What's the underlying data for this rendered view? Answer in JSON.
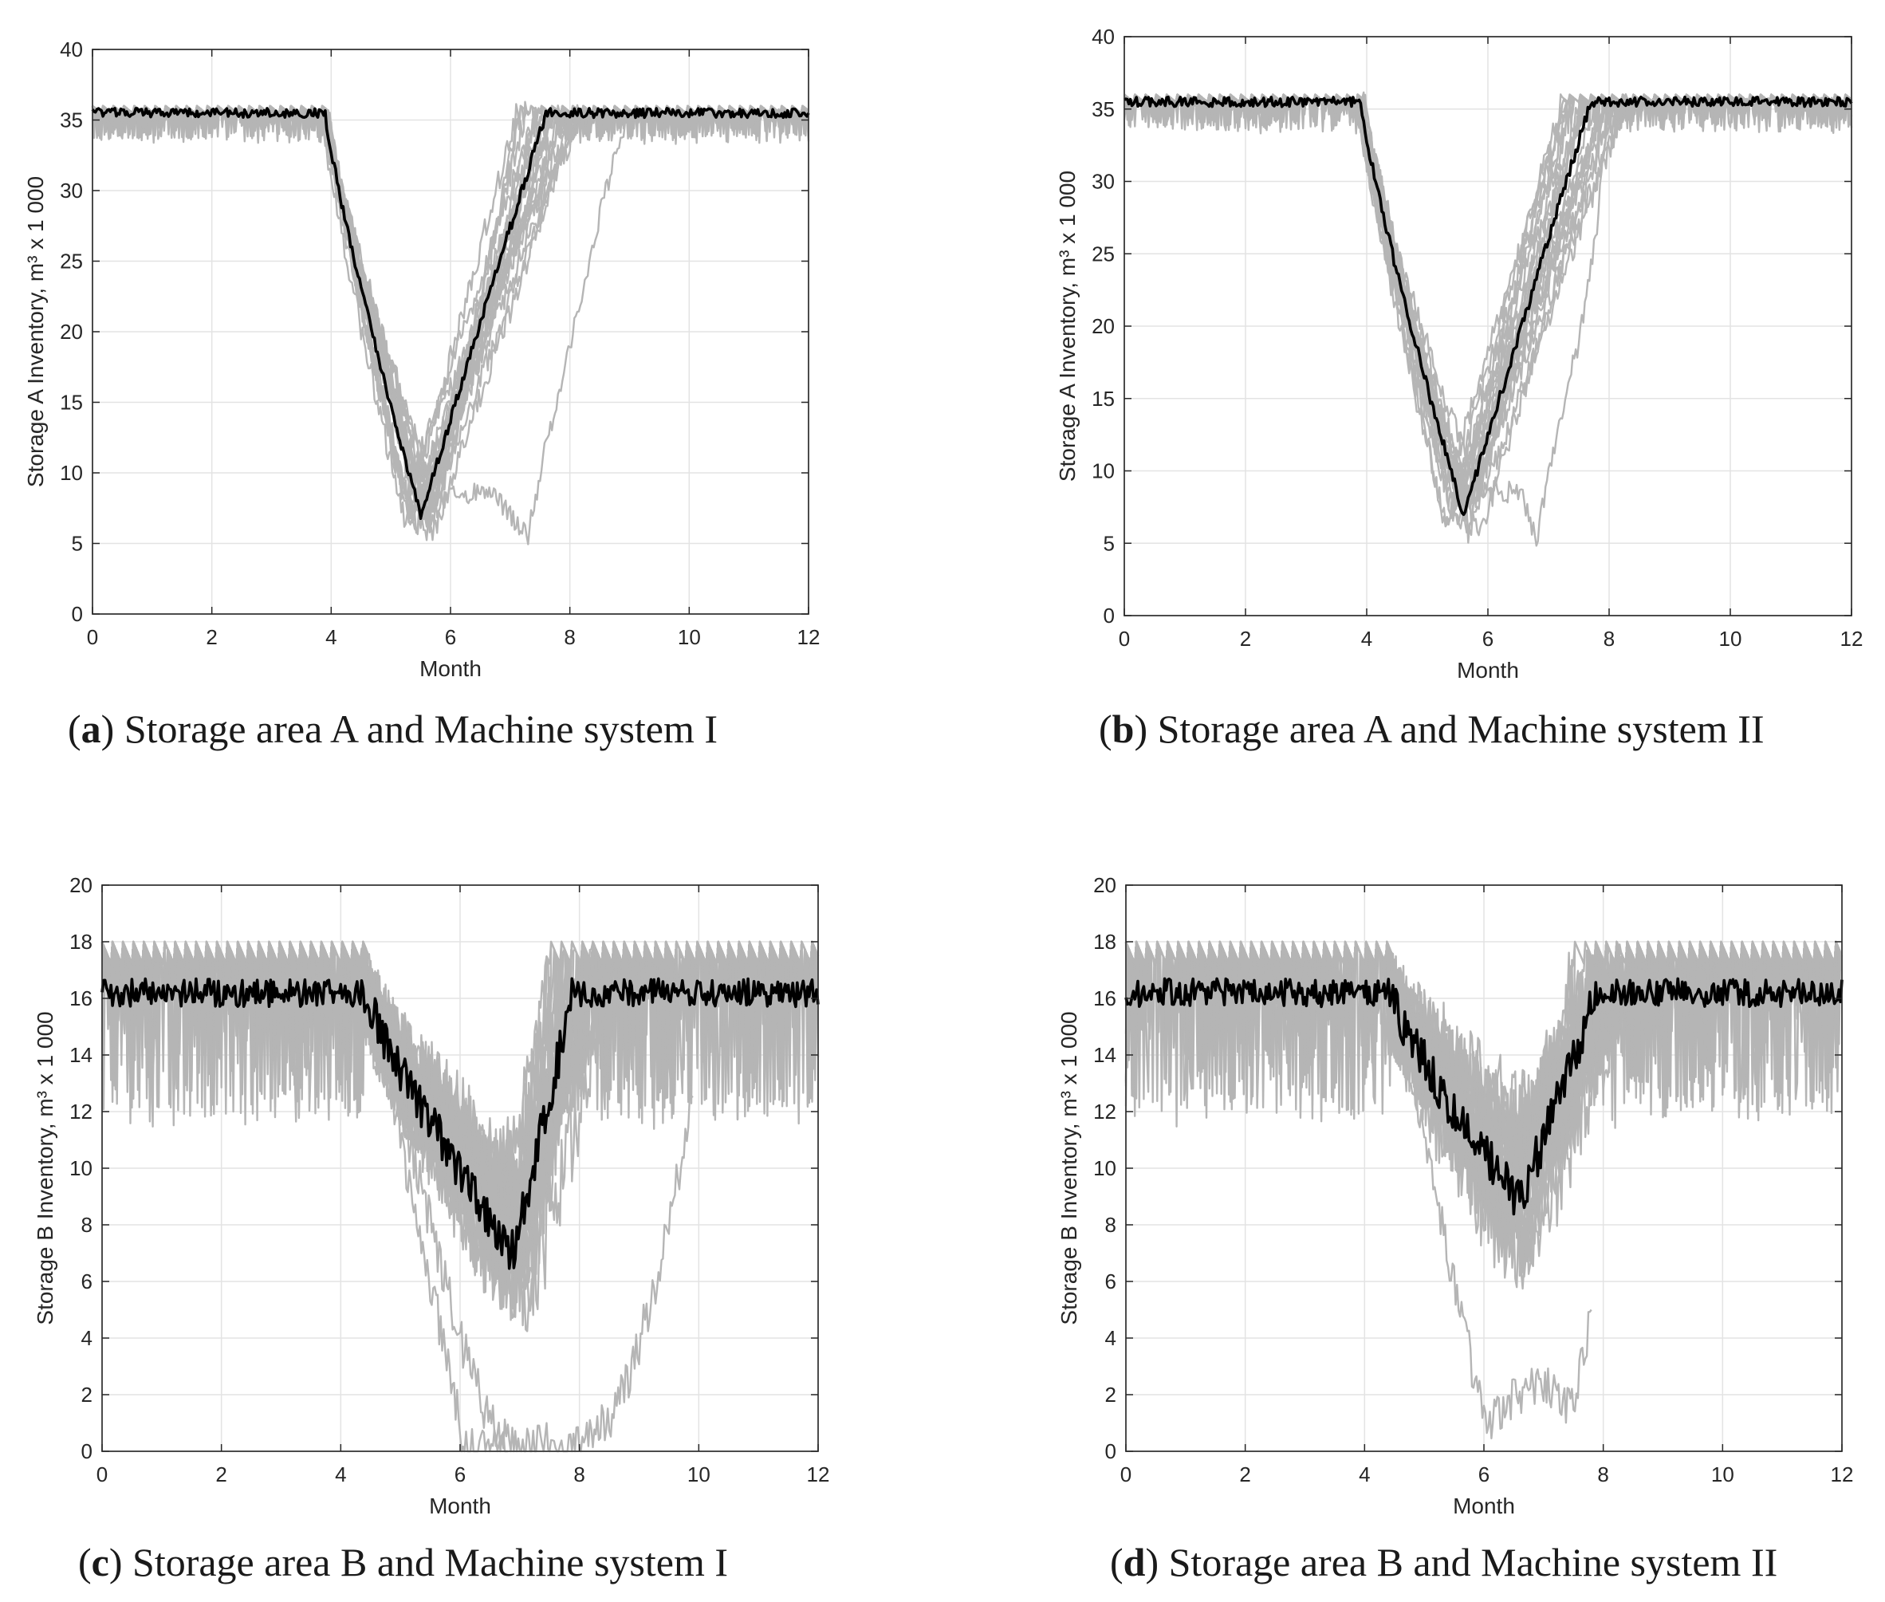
{
  "chart_data": [
    {
      "id": "a",
      "type": "line",
      "caption_letter": "a",
      "caption_text": "Storage area A and Machine system I",
      "xlabel": "Month",
      "ylabel": "Storage A Inventory, m³ x 1 000",
      "xlim": [
        0,
        12
      ],
      "ylim": [
        0,
        40
      ],
      "xticks": [
        0,
        2,
        4,
        6,
        8,
        10,
        12
      ],
      "yticks": [
        0,
        5,
        10,
        15,
        20,
        25,
        30,
        35,
        40
      ],
      "grid": true,
      "colors": {
        "simulations": "#b5b5b5",
        "mean": "#000000"
      },
      "shape": {
        "plateau": 35.5,
        "ripple": 0.6,
        "floor": 34.3,
        "cap": 36.0,
        "drop_start": 3.9,
        "min_x": 5.5,
        "min_y": 7.0,
        "recover_x": 7.6,
        "noise": 0.8
      },
      "outliers": [
        {
          "points": [
            [
              3.9,
              35.5
            ],
            [
              5.4,
              7.5
            ],
            [
              6.2,
              8.6
            ],
            [
              6.8,
              8.2
            ],
            [
              7.3,
              5.5
            ],
            [
              7.6,
              12
            ],
            [
              8.1,
              21
            ],
            [
              8.6,
              30
            ],
            [
              9.0,
              35.5
            ],
            [
              12,
              35.5
            ]
          ]
        }
      ]
    },
    {
      "id": "b",
      "type": "line",
      "caption_letter": "b",
      "caption_text": "Storage area A and Machine system II",
      "xlabel": "Month",
      "ylabel": "Storage A Inventory, m³ x 1 000",
      "xlim": [
        0,
        12
      ],
      "ylim": [
        0,
        40
      ],
      "xticks": [
        0,
        2,
        4,
        6,
        8,
        10,
        12
      ],
      "yticks": [
        0,
        5,
        10,
        15,
        20,
        25,
        30,
        35,
        40
      ],
      "grid": true,
      "colors": {
        "simulations": "#b5b5b5",
        "mean": "#000000"
      },
      "shape": {
        "plateau": 35.5,
        "ripple": 0.6,
        "floor": 34.3,
        "cap": 36.0,
        "drop_start": 3.9,
        "min_x": 5.6,
        "min_y": 7.0,
        "recover_x": 7.7,
        "noise": 0.8
      },
      "outliers": [
        {
          "points": [
            [
              3.9,
              35.5
            ],
            [
              5.5,
              8.5
            ],
            [
              6.2,
              8.8
            ],
            [
              6.6,
              8.0
            ],
            [
              6.8,
              5.0
            ],
            [
              7.0,
              10
            ],
            [
              7.5,
              19
            ],
            [
              7.8,
              27
            ],
            [
              8.0,
              35.5
            ],
            [
              12,
              35.5
            ]
          ]
        }
      ]
    },
    {
      "id": "c",
      "type": "line",
      "caption_letter": "c",
      "caption_text": "Storage area B and Machine system I",
      "xlabel": "Month",
      "ylabel": "Storage B Inventory, m³ x 1 000",
      "xlim": [
        0,
        12
      ],
      "ylim": [
        0,
        20
      ],
      "xticks": [
        0,
        2,
        4,
        6,
        8,
        10,
        12
      ],
      "yticks": [
        0,
        2,
        4,
        6,
        8,
        10,
        12,
        14,
        16,
        18,
        20
      ],
      "grid": true,
      "colors": {
        "simulations": "#b5b5b5",
        "mean": "#000000"
      },
      "shape": {
        "plateau": 16.2,
        "ripple": 0.9,
        "floor": 13.5,
        "cap": 18.0,
        "drop_start": 4.4,
        "min_x": 6.9,
        "min_y": 7.0,
        "recover_x": 7.9,
        "noise": 1.6
      },
      "outliers": [
        {
          "points": [
            [
              4.4,
              17
            ],
            [
              6.0,
              4
            ],
            [
              6.5,
              1
            ],
            [
              7.0,
              0
            ],
            [
              8.0,
              0.5
            ],
            [
              8.5,
              1
            ],
            [
              8.9,
              3
            ],
            [
              9.4,
              7
            ],
            [
              9.9,
              12.5
            ]
          ]
        },
        {
          "points": [
            [
              4.4,
              17
            ],
            [
              5.8,
              3
            ],
            [
              6.1,
              0
            ],
            [
              6.8,
              0
            ]
          ]
        }
      ]
    },
    {
      "id": "d",
      "type": "line",
      "caption_letter": "d",
      "caption_text": "Storage area B and Machine system II",
      "xlabel": "Month",
      "ylabel": "Storage B Inventory, m³ x 1 000",
      "xlim": [
        0,
        12
      ],
      "ylim": [
        0,
        20
      ],
      "xticks": [
        0,
        2,
        4,
        6,
        8,
        10,
        12
      ],
      "yticks": [
        0,
        2,
        4,
        6,
        8,
        10,
        12,
        14,
        16,
        18,
        20
      ],
      "grid": true,
      "colors": {
        "simulations": "#b5b5b5",
        "mean": "#000000"
      },
      "shape": {
        "plateau": 16.2,
        "ripple": 0.9,
        "floor": 13.5,
        "cap": 18.0,
        "drop_start": 4.4,
        "min_x": 6.6,
        "min_y": 8.8,
        "recover_x": 7.9,
        "noise": 1.6
      },
      "outliers": [
        {
          "points": [
            [
              4.4,
              17
            ],
            [
              5.6,
              5
            ],
            [
              6.0,
              1
            ],
            [
              6.5,
              2
            ],
            [
              7.0,
              2.5
            ],
            [
              7.5,
              1.5
            ],
            [
              7.8,
              5
            ]
          ]
        }
      ]
    }
  ]
}
